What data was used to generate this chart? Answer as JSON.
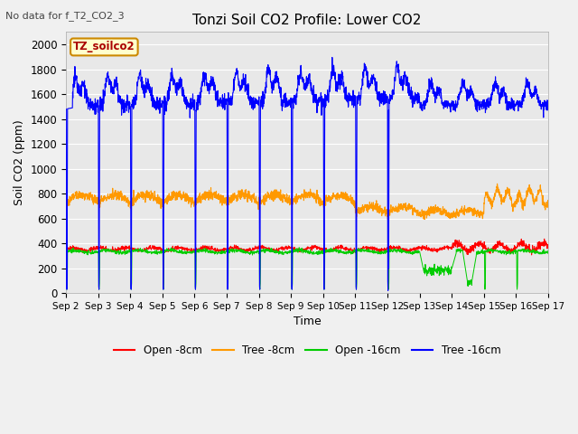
{
  "title": "Tonzi Soil CO2 Profile: Lower CO2",
  "subtitle": "No data for f_T2_CO2_3",
  "xlabel": "Time",
  "ylabel": "Soil CO2 (ppm)",
  "ylim": [
    0,
    2100
  ],
  "yticks": [
    0,
    200,
    400,
    600,
    800,
    1000,
    1200,
    1400,
    1600,
    1800,
    2000
  ],
  "xtick_labels": [
    "Sep 2",
    "Sep 3",
    "Sep 4",
    "Sep 5",
    "Sep 6",
    "Sep 7",
    "Sep 8",
    "Sep 9",
    "Sep 10",
    "Sep 11",
    "Sep 12",
    "Sep 13",
    "Sep 14",
    "Sep 15",
    "Sep 16",
    "Sep 17"
  ],
  "legend_labels": [
    "Open -8cm",
    "Tree -8cm",
    "Open -16cm",
    "Tree -16cm"
  ],
  "legend_colors": [
    "#ff0000",
    "#ff9900",
    "#00cc00",
    "#0000ff"
  ],
  "box_label": "TZ_soilco2",
  "box_bg": "#ffffcc",
  "box_border": "#cc8800",
  "fig_bg": "#f0f0f0",
  "plot_bg": "#e8e8e8",
  "figsize": [
    6.4,
    4.8
  ],
  "dpi": 100
}
